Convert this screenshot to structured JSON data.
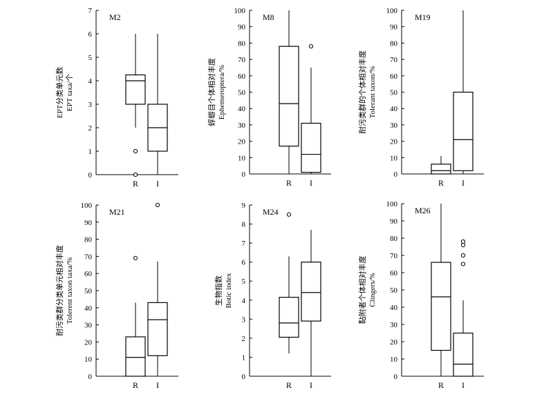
{
  "chart_data": [
    {
      "id": "M2",
      "type": "boxplot",
      "panel_label": "M2",
      "ylabel_cn": "EPT分类单元数",
      "ylabel_en": "EPT taxa/个",
      "ylim": [
        0,
        7
      ],
      "yticks": [
        0,
        1,
        2,
        3,
        4,
        5,
        6,
        7
      ],
      "categories": [
        "R",
        "I"
      ],
      "boxes": [
        {
          "category": "R",
          "whisker_low": 2,
          "q1": 3,
          "median": 4,
          "q3": 4.25,
          "whisker_high": 6,
          "outliers": [
            1,
            0
          ]
        },
        {
          "category": "I",
          "whisker_low": 0,
          "q1": 1,
          "median": 2,
          "q3": 3,
          "whisker_high": 6,
          "outliers": []
        }
      ]
    },
    {
      "id": "M8",
      "type": "boxplot",
      "panel_label": "M8",
      "ylabel_cn": "蜉蝣目个体相对丰度",
      "ylabel_en": "Ephemeroptera/%",
      "ylim": [
        0,
        100
      ],
      "yticks": [
        0,
        10,
        20,
        30,
        40,
        50,
        60,
        70,
        80,
        90,
        100
      ],
      "categories": [
        "R",
        "I"
      ],
      "boxes": [
        {
          "category": "R",
          "whisker_low": 0,
          "q1": 17,
          "median": 43,
          "q3": 78,
          "whisker_high": 100,
          "outliers": []
        },
        {
          "category": "I",
          "whisker_low": 0,
          "q1": 1,
          "median": 12,
          "q3": 31,
          "whisker_high": 65,
          "outliers": [
            78
          ]
        }
      ]
    },
    {
      "id": "M19",
      "type": "boxplot",
      "panel_label": "M19",
      "ylabel_cn": "耐污类群的个体相对丰度",
      "ylabel_en": "Tolerant taxon/%",
      "ylim": [
        0,
        100
      ],
      "yticks": [
        0,
        10,
        20,
        30,
        40,
        50,
        60,
        70,
        80,
        90,
        100
      ],
      "categories": [
        "R",
        "I"
      ],
      "boxes": [
        {
          "category": "R",
          "whisker_low": 0,
          "q1": 0,
          "median": 2,
          "q3": 6,
          "whisker_high": 11,
          "outliers": []
        },
        {
          "category": "I",
          "whisker_low": 0,
          "q1": 2,
          "median": 21,
          "q3": 50,
          "whisker_high": 100,
          "outliers": []
        }
      ]
    },
    {
      "id": "M21",
      "type": "boxplot",
      "panel_label": "M21",
      "ylabel_cn": "耐污类群分类单元相对丰度",
      "ylabel_en": "Tolerent taxon taxa/%",
      "ylim": [
        0,
        100
      ],
      "yticks": [
        0,
        10,
        20,
        30,
        40,
        50,
        60,
        70,
        80,
        90,
        100
      ],
      "categories": [
        "R",
        "I"
      ],
      "boxes": [
        {
          "category": "R",
          "whisker_low": 0,
          "q1": 0,
          "median": 11,
          "q3": 23,
          "whisker_high": 43,
          "outliers": [
            69
          ]
        },
        {
          "category": "I",
          "whisker_low": 0,
          "q1": 12,
          "median": 33,
          "q3": 43,
          "whisker_high": 67,
          "outliers": [
            100
          ]
        }
      ]
    },
    {
      "id": "M24",
      "type": "boxplot",
      "panel_label": "M24",
      "ylabel_cn": "生物指数",
      "ylabel_en": "Botic index",
      "ylim": [
        0,
        9
      ],
      "yticks": [
        0,
        1,
        2,
        3,
        4,
        5,
        6,
        7,
        8,
        9
      ],
      "categories": [
        "R",
        "I"
      ],
      "boxes": [
        {
          "category": "R",
          "whisker_low": 1.2,
          "q1": 2.05,
          "median": 2.8,
          "q3": 4.15,
          "whisker_high": 6.3,
          "outliers": [
            8.5
          ]
        },
        {
          "category": "I",
          "whisker_low": 0,
          "q1": 2.9,
          "median": 4.4,
          "q3": 6.0,
          "whisker_high": 7.7,
          "outliers": []
        }
      ]
    },
    {
      "id": "M26",
      "type": "boxplot",
      "panel_label": "M26",
      "ylabel_cn": "黏附者个体相对丰度",
      "ylabel_en": "Clingers/%",
      "ylim": [
        0,
        100
      ],
      "yticks": [
        0,
        10,
        20,
        30,
        40,
        50,
        60,
        70,
        80,
        90,
        100
      ],
      "categories": [
        "R",
        "I"
      ],
      "boxes": [
        {
          "category": "R",
          "whisker_low": 0,
          "q1": 15,
          "median": 46,
          "q3": 66,
          "whisker_high": 100,
          "outliers": []
        },
        {
          "category": "I",
          "whisker_low": 0,
          "q1": 0,
          "median": 7,
          "q3": 25,
          "whisker_high": 44,
          "outliers": [
            65,
            70,
            76,
            78
          ]
        }
      ]
    }
  ]
}
